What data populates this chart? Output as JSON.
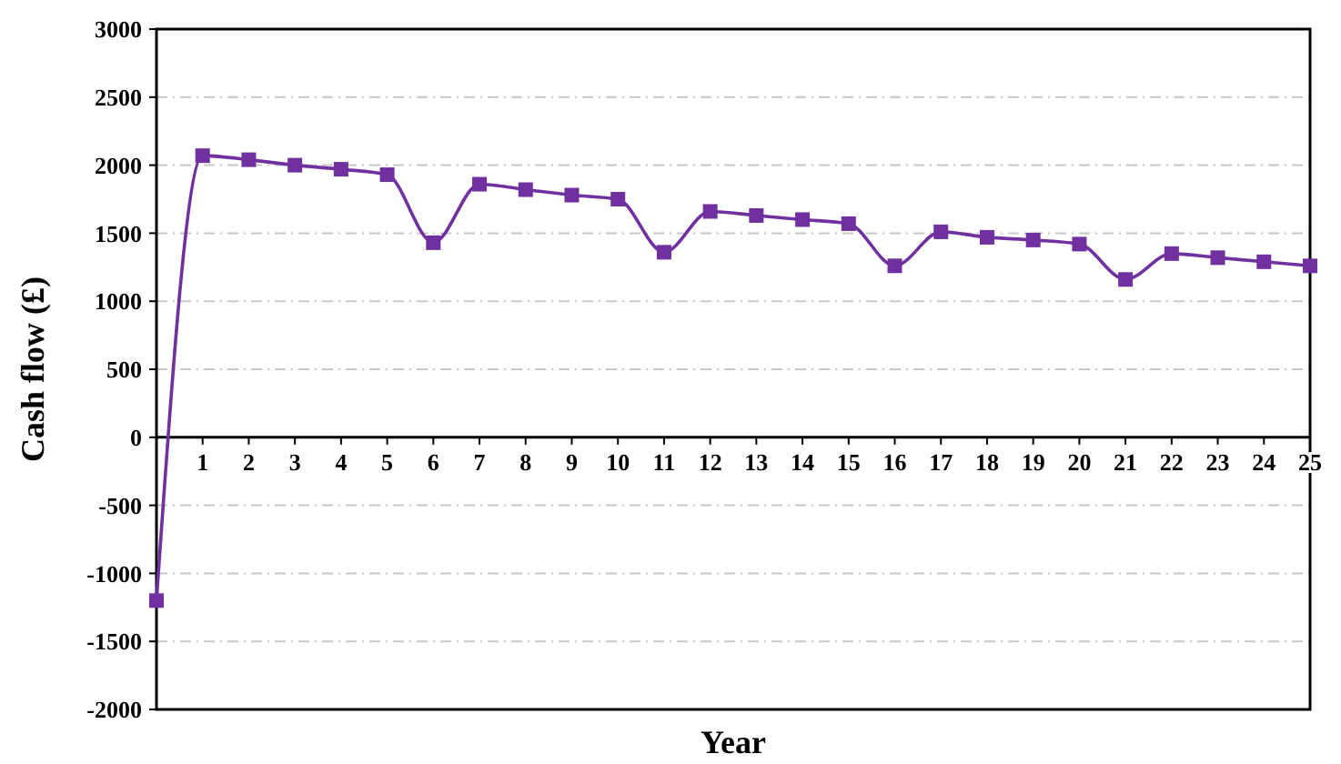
{
  "chart_data": {
    "type": "line",
    "xlabel": "Year",
    "ylabel": "Cash flow (£)",
    "x": [
      0,
      1,
      2,
      3,
      4,
      5,
      6,
      7,
      8,
      9,
      10,
      11,
      12,
      13,
      14,
      15,
      16,
      17,
      18,
      19,
      20,
      21,
      22,
      23,
      24,
      25
    ],
    "series": [
      {
        "color": "#7030a0",
        "values": [
          -1200,
          2070,
          2040,
          2000,
          1970,
          1930,
          1430,
          1860,
          1820,
          1780,
          1750,
          1360,
          1660,
          1630,
          1600,
          1570,
          1260,
          1510,
          1470,
          1450,
          1420,
          1160,
          1350,
          1320,
          1290,
          1260
        ]
      }
    ],
    "xlim": [
      0,
      25
    ],
    "xticks": [
      1,
      2,
      3,
      4,
      5,
      6,
      7,
      8,
      9,
      10,
      11,
      12,
      13,
      14,
      15,
      16,
      17,
      18,
      19,
      20,
      21,
      22,
      23,
      24,
      25
    ],
    "ylim": [
      -2000,
      3000
    ],
    "yticks": [
      -2000,
      -1500,
      -1000,
      -500,
      0,
      500,
      1000,
      1500,
      2000,
      2500,
      3000
    ],
    "grid": "y",
    "marker": "square",
    "line_style": "solid"
  }
}
